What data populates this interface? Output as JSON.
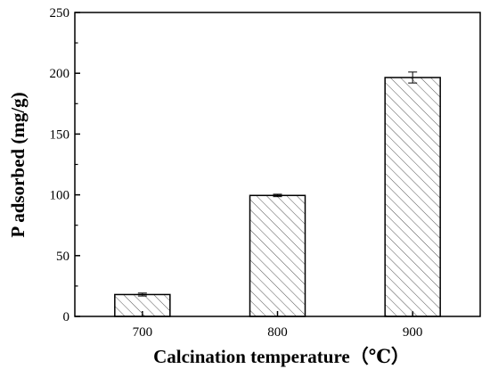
{
  "chart_data": {
    "type": "bar",
    "categories": [
      "700",
      "800",
      "900"
    ],
    "values": [
      18,
      99.5,
      196.5
    ],
    "errors": [
      1.2,
      1.0,
      4.5
    ],
    "title": "",
    "xlabel": "Calcination temperature（℃）",
    "ylabel": "P adsorbed (mg/g)",
    "ylim": [
      0,
      250
    ],
    "yticks": [
      "0",
      "50",
      "100",
      "150",
      "200",
      "250"
    ],
    "grid": false,
    "bar_fill": "hatched",
    "colors": {
      "bar_edge": "#000000",
      "hatch": "#555555",
      "axis": "#000000",
      "background": "#ffffff"
    }
  }
}
